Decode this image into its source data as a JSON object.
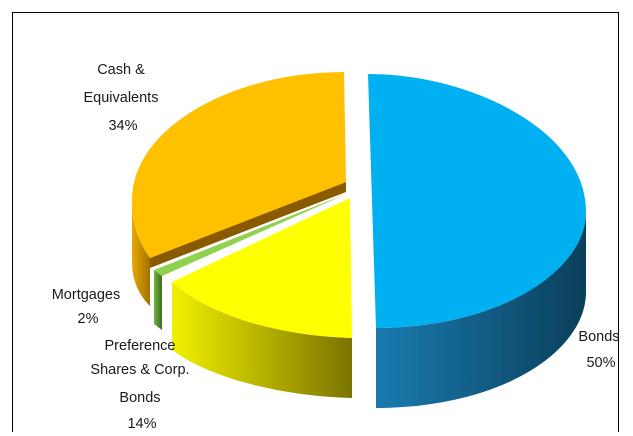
{
  "chart_data": {
    "type": "pie",
    "style": "3d-exploded",
    "slices": [
      {
        "name_lines": [
          "Bonds"
        ],
        "percent_label": "50%",
        "value": 50,
        "color": "#00b0f0"
      },
      {
        "name_lines": [
          "Preference",
          "Shares & Corp.",
          "Bonds"
        ],
        "percent_label": "14%",
        "value": 14,
        "color": "#ffff00"
      },
      {
        "name_lines": [
          "Mortgages"
        ],
        "percent_label": "2%",
        "value": 2,
        "color": "#92d050"
      },
      {
        "name_lines": [
          "Cash &",
          "Equivalents"
        ],
        "percent_label": "34%",
        "value": 34,
        "color": "#ffc000"
      }
    ],
    "legend": "none"
  }
}
